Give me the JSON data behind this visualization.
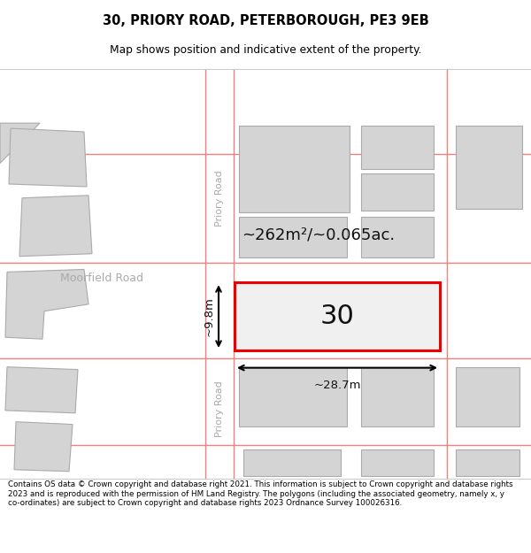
{
  "title_line1": "30, PRIORY ROAD, PETERBOROUGH, PE3 9EB",
  "title_line2": "Map shows position and indicative extent of the property.",
  "footer_text": "Contains OS data © Crown copyright and database right 2021. This information is subject to Crown copyright and database rights 2023 and is reproduced with the permission of HM Land Registry. The polygons (including the associated geometry, namely x, y co-ordinates) are subject to Crown copyright and database rights 2023 Ordnance Survey 100026316.",
  "bg_color": "#efefef",
  "building_fill": "#d4d4d4",
  "building_edge": "#aaaaaa",
  "highlight_fill": "#f0f0f0",
  "highlight_edge": "#ee0000",
  "pink": "#f08080",
  "label_30": "30",
  "area_text": "~262m²/~0.065ac.",
  "dim_width": "~28.7m",
  "dim_height": "~9.8m",
  "road_label_top": "Priory Road",
  "road_label_bottom": "Priory Road",
  "street_label": "Moorfield Road",
  "white": "#ffffff",
  "gray_text": "#aaaaaa",
  "black": "#111111"
}
